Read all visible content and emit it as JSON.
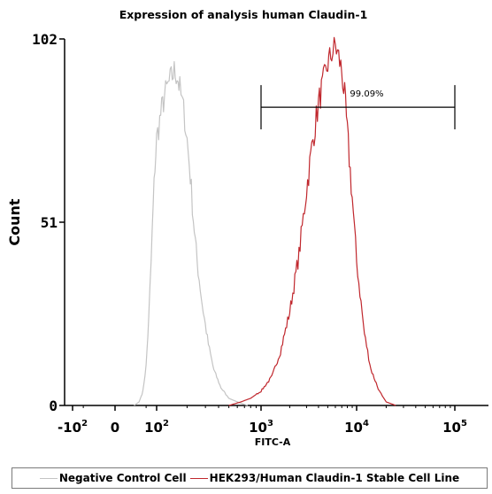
{
  "chart_data": {
    "type": "histogram",
    "title": "Expression of analysis human Claudin-1",
    "xlabel": "FITC-A",
    "ylabel": "Count",
    "ylim": [
      0,
      102
    ],
    "y_ticks": [
      {
        "value": 0,
        "label": "0"
      },
      {
        "value": 51,
        "label": "51"
      },
      {
        "value": 102,
        "label": "102"
      }
    ],
    "x_scale": "biexponential",
    "x_ticks": [
      {
        "value": -100,
        "base": "-10",
        "exp": "2"
      },
      {
        "value": 0,
        "base": "0",
        "exp": ""
      },
      {
        "value": 100,
        "base": "10",
        "exp": "2"
      },
      {
        "value": 1000,
        "base": "10",
        "exp": "3"
      },
      {
        "value": 10000,
        "base": "10",
        "exp": "4"
      },
      {
        "value": 100000,
        "base": "10",
        "exp": "5"
      }
    ],
    "gate": {
      "label": "99.09%",
      "x_start": 1000,
      "x_end": 100000,
      "y": 83
    },
    "series": [
      {
        "name": "Negative Control Cell",
        "color": "#c4c4c4",
        "x": [
          20,
          30,
          40,
          50,
          60,
          70,
          80,
          90,
          100,
          110,
          120,
          130,
          140,
          150,
          160,
          170,
          180,
          190,
          200,
          215,
          230,
          250,
          280,
          320,
          360,
          420,
          500,
          600,
          750
        ],
        "y": [
          0,
          1,
          4,
          11,
          24,
          40,
          55,
          67,
          74,
          81,
          86,
          89,
          91,
          93,
          92,
          88,
          84,
          80,
          74,
          64,
          52,
          40,
          28,
          17,
          10,
          5,
          2,
          1,
          0
        ]
      },
      {
        "name": "HEK293/Human Claudin-1 Stable Cell Line",
        "color": "#c0272d",
        "x": [
          500,
          650,
          800,
          1000,
          1300,
          1600,
          2000,
          2500,
          3000,
          3500,
          4000,
          4500,
          5000,
          5500,
          6000,
          6500,
          7000,
          7500,
          8000,
          9000,
          10000,
          12000,
          14000,
          17000,
          20000,
          25000
        ],
        "y": [
          0,
          1,
          2,
          4,
          8,
          15,
          26,
          42,
          60,
          74,
          84,
          90,
          95,
          98,
          100,
          97,
          93,
          86,
          76,
          58,
          40,
          20,
          10,
          4,
          1,
          0
        ]
      }
    ],
    "legend": {
      "position": "bottom"
    }
  }
}
